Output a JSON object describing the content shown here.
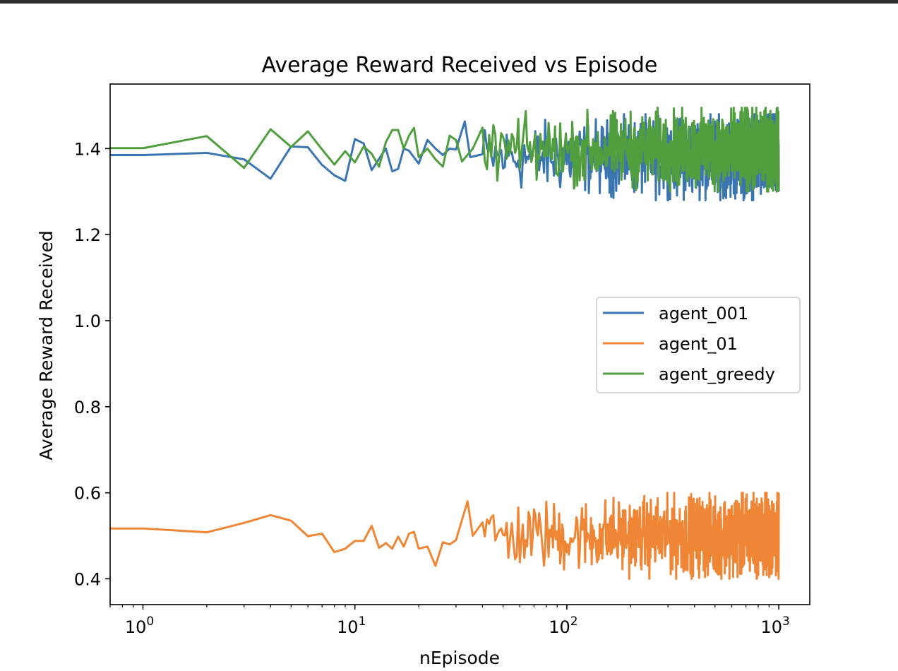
{
  "chart_data": {
    "type": "line",
    "title": "Average Reward Received vs Episode",
    "xlabel": "nEpisode",
    "ylabel": "Average Reward Received",
    "xscale": "log",
    "xlim": [
      0.7,
      1400
    ],
    "ylim": [
      0.34,
      1.55
    ],
    "yticks": [
      "0.4",
      "0.6",
      "0.8",
      "1.0",
      "1.2",
      "1.4"
    ],
    "xticks": [
      {
        "base": "10",
        "exp": "0"
      },
      {
        "base": "10",
        "exp": "1"
      },
      {
        "base": "10",
        "exp": "2"
      },
      {
        "base": "10",
        "exp": "3"
      }
    ],
    "grid": false,
    "legend_position": "center-right",
    "series": [
      {
        "name": "agent_001",
        "color": "#3b75af",
        "points": [
          [
            0.7,
            1.385
          ],
          [
            1,
            1.385
          ],
          [
            2,
            1.39
          ],
          [
            3,
            1.375
          ],
          [
            4,
            1.33
          ],
          [
            5,
            1.405
          ],
          [
            6,
            1.403
          ],
          [
            7,
            1.362
          ],
          [
            8,
            1.338
          ],
          [
            9,
            1.325
          ],
          [
            10,
            1.422
          ],
          [
            11,
            1.412
          ],
          [
            12,
            1.35
          ],
          [
            14,
            1.4
          ],
          [
            15,
            1.347
          ],
          [
            16,
            1.353
          ],
          [
            17,
            1.4
          ],
          [
            18,
            1.395
          ],
          [
            20,
            1.365
          ],
          [
            22,
            1.42
          ],
          [
            24,
            1.4
          ],
          [
            26,
            1.385
          ],
          [
            28,
            1.4
          ],
          [
            30,
            1.398
          ],
          [
            33,
            1.463
          ],
          [
            35,
            1.38
          ],
          [
            40,
            1.43
          ],
          [
            50,
            1.38
          ],
          [
            60,
            1.39
          ],
          [
            100,
            1.39
          ],
          [
            150,
            1.39
          ],
          [
            200,
            1.39
          ],
          [
            300,
            1.39
          ],
          [
            500,
            1.39
          ],
          [
            800,
            1.39
          ],
          [
            1000,
            1.39
          ]
        ],
        "noise": {
          "from": 40,
          "to": 1000,
          "min": 1.28,
          "max": 1.48
        }
      },
      {
        "name": "agent_01",
        "color": "#ef8636",
        "points": [
          [
            0.7,
            0.517
          ],
          [
            1,
            0.517
          ],
          [
            2,
            0.508
          ],
          [
            3,
            0.53
          ],
          [
            4,
            0.548
          ],
          [
            5,
            0.535
          ],
          [
            6,
            0.499
          ],
          [
            7,
            0.505
          ],
          [
            8,
            0.462
          ],
          [
            9,
            0.47
          ],
          [
            10,
            0.488
          ],
          [
            11,
            0.488
          ],
          [
            12,
            0.523
          ],
          [
            13,
            0.472
          ],
          [
            14,
            0.483
          ],
          [
            15,
            0.47
          ],
          [
            16,
            0.498
          ],
          [
            17,
            0.475
          ],
          [
            18,
            0.505
          ],
          [
            19,
            0.509
          ],
          [
            20,
            0.47
          ],
          [
            22,
            0.475
          ],
          [
            24,
            0.43
          ],
          [
            26,
            0.485
          ],
          [
            28,
            0.48
          ],
          [
            30,
            0.49
          ],
          [
            34,
            0.58
          ],
          [
            36,
            0.5
          ],
          [
            40,
            0.51
          ],
          [
            50,
            0.49
          ],
          [
            100,
            0.495
          ],
          [
            200,
            0.49
          ],
          [
            400,
            0.49
          ],
          [
            700,
            0.495
          ],
          [
            1000,
            0.495
          ]
        ],
        "noise": {
          "from": 40,
          "to": 1000,
          "min": 0.4,
          "max": 0.6
        }
      },
      {
        "name": "agent_greedy",
        "color": "#519e3e",
        "points": [
          [
            0.7,
            1.401
          ],
          [
            1,
            1.401
          ],
          [
            2,
            1.429
          ],
          [
            3,
            1.355
          ],
          [
            4,
            1.445
          ],
          [
            5,
            1.404
          ],
          [
            6,
            1.44
          ],
          [
            7,
            1.398
          ],
          [
            8,
            1.363
          ],
          [
            9,
            1.394
          ],
          [
            10,
            1.368
          ],
          [
            11,
            1.405
          ],
          [
            12,
            1.388
          ],
          [
            13,
            1.358
          ],
          [
            14,
            1.415
          ],
          [
            15,
            1.443
          ],
          [
            16,
            1.443
          ],
          [
            17,
            1.4
          ],
          [
            18,
            1.43
          ],
          [
            19,
            1.448
          ],
          [
            20,
            1.38
          ],
          [
            22,
            1.4
          ],
          [
            24,
            1.375
          ],
          [
            26,
            1.358
          ],
          [
            28,
            1.43
          ],
          [
            30,
            1.42
          ],
          [
            32,
            1.37
          ],
          [
            36,
            1.4
          ],
          [
            40,
            1.4
          ],
          [
            50,
            1.4
          ],
          [
            100,
            1.4
          ],
          [
            200,
            1.4
          ],
          [
            400,
            1.4
          ],
          [
            700,
            1.4
          ],
          [
            1000,
            1.4
          ]
        ],
        "noise": {
          "from": 40,
          "to": 1000,
          "min": 1.3,
          "max": 1.495
        }
      }
    ]
  }
}
